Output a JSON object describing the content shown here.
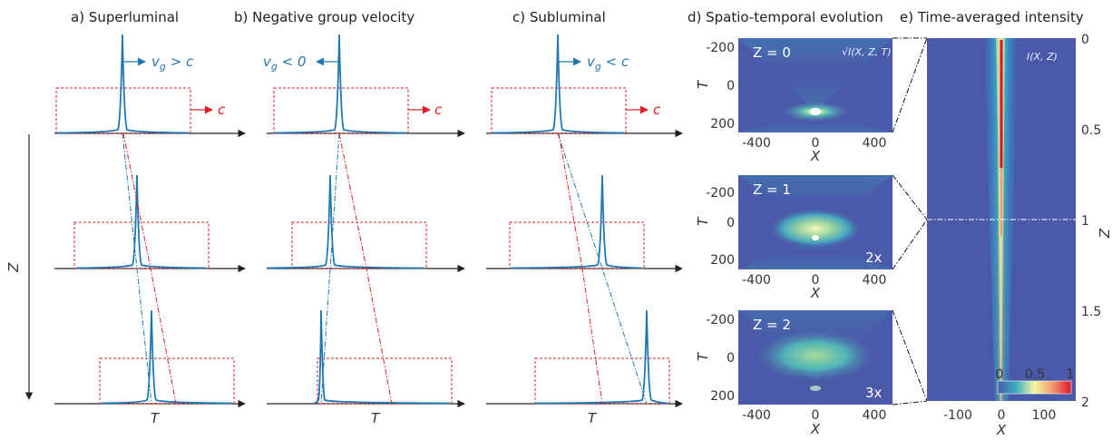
{
  "panels": {
    "a": {
      "title": "a) Superluminal",
      "velocity_label": "v",
      "velocity_sub": "g",
      "velocity_rel": " > c",
      "c_label": "c",
      "t_label": "T"
    },
    "b": {
      "title": "b) Negative group velocity",
      "velocity_label": "v",
      "velocity_sub": "g",
      "velocity_rel": " < 0",
      "c_label": "c",
      "t_label": "T"
    },
    "c": {
      "title": "c) Subluminal",
      "velocity_label": "v",
      "velocity_sub": "g",
      "velocity_rel": " < c",
      "c_label": "c",
      "t_label": "T"
    },
    "d": {
      "title": "d) Spatio-temporal evolution",
      "intensity_label": "√I(X, Z, T)",
      "x_label": "X",
      "y_label": "T",
      "x_ticks": [
        "-400",
        "0",
        "400"
      ],
      "y_ticks": [
        "-200",
        "0",
        "200"
      ],
      "maps": [
        {
          "z_label": "Z = 0",
          "gain": ""
        },
        {
          "z_label": "Z = 1",
          "gain": "2x"
        },
        {
          "z_label": "Z = 2",
          "gain": "3x"
        }
      ]
    },
    "e": {
      "title": "e) Time-averaged intensity",
      "map_label": "I(X, Z)",
      "x_label": "X",
      "z_label": "Z",
      "x_ticks": [
        "-100",
        "0",
        "100"
      ],
      "z_ticks": [
        "0",
        "0.5",
        "1",
        "1.5",
        "2"
      ],
      "colorbar_ticks": [
        "0",
        "0.5",
        "1"
      ]
    }
  },
  "z_axis_label": "Z",
  "colors": {
    "pulse": "#1f77b4",
    "box": "#e02020",
    "map_low": "#4a59a8",
    "map_high": "#e0102a"
  }
}
